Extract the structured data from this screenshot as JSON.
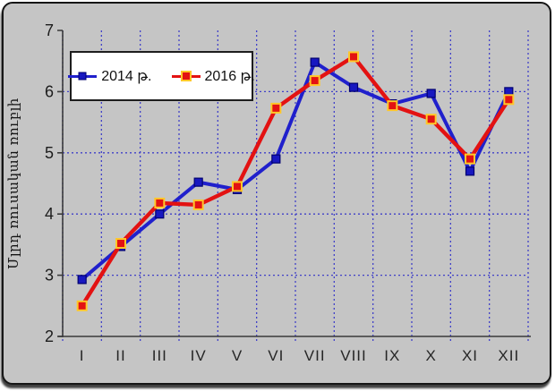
{
  "chart_data": {
    "type": "line",
    "title": "",
    "xlabel": "",
    "ylabel": "Մլրդ ռուսական ռուբլի",
    "categories": [
      "I",
      "II",
      "III",
      "IV",
      "V",
      "VI",
      "VII",
      "VIII",
      "IX",
      "X",
      "XI",
      "XII"
    ],
    "series": [
      {
        "name": "2014 թ.",
        "color": "#2020cc",
        "marker_fill": "#1818c0",
        "marker_edge": "#000070",
        "marker_size": 9,
        "values": [
          2.93,
          3.47,
          4.0,
          4.52,
          4.4,
          4.9,
          6.48,
          6.07,
          5.8,
          5.97,
          4.7,
          6.0
        ]
      },
      {
        "name": "2016 թ.",
        "color": "#e31212",
        "marker_fill": "#e31212",
        "marker_edge": "#ffc829",
        "marker_size": 10,
        "values": [
          2.5,
          3.52,
          4.18,
          4.15,
          4.45,
          5.73,
          6.18,
          6.57,
          5.77,
          5.55,
          4.9,
          5.87
        ]
      }
    ],
    "ylim": [
      2,
      7
    ],
    "yticks": [
      2,
      3,
      4,
      5,
      6,
      7
    ],
    "grid": {
      "horizontal": true,
      "vertical": true,
      "color": "#4040c8",
      "style": "dotted"
    },
    "legend_position": "top-left",
    "plot_bg": "#c5c5c5",
    "axis_color": "#3a3a3a"
  }
}
